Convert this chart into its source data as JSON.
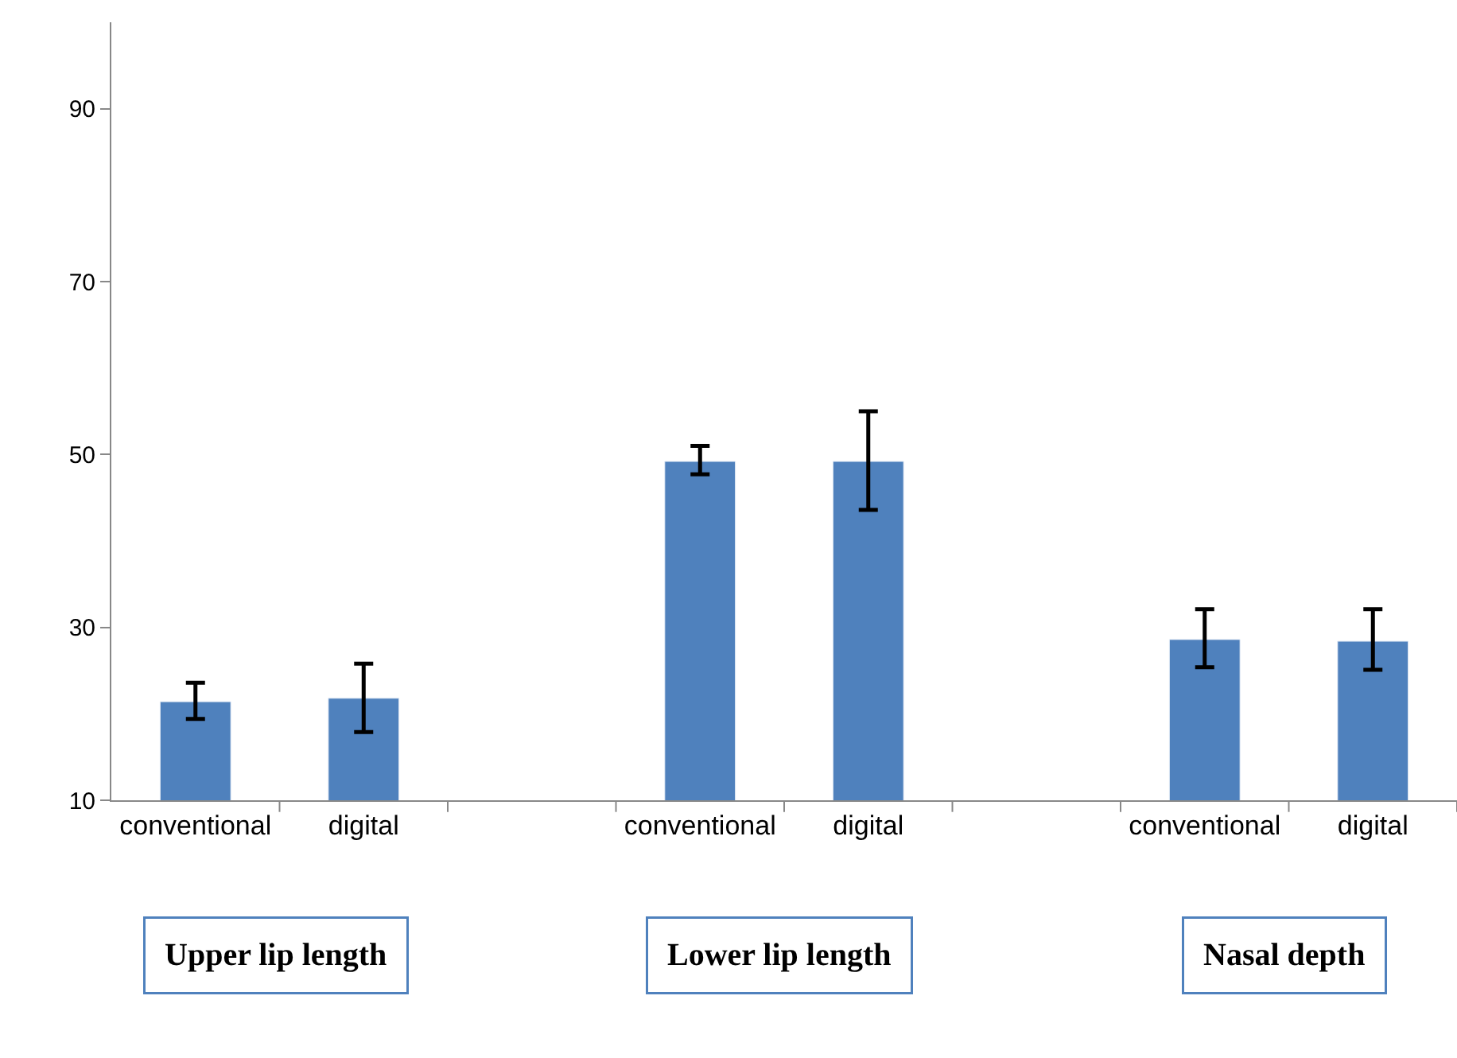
{
  "chart_data": {
    "type": "bar",
    "categories": [
      "conventional",
      "digital",
      null,
      "conventional",
      "digital",
      null,
      "conventional",
      "digital"
    ],
    "values": [
      21.4,
      21.8,
      null,
      49.2,
      49.2,
      null,
      28.6,
      28.4
    ],
    "errors": [
      [
        19.4,
        23.6
      ],
      [
        17.9,
        25.8
      ],
      null,
      [
        47.7,
        51.0
      ],
      [
        43.6,
        55.0
      ],
      null,
      [
        25.4,
        32.1
      ],
      [
        25.1,
        32.1
      ]
    ],
    "color": "#4f81bd",
    "ylim": [
      10,
      100
    ],
    "yticks": [
      10,
      30,
      50,
      70,
      90
    ],
    "annotations": [
      "Upper lip length",
      "Lower lip length",
      "Nasal depth"
    ]
  }
}
